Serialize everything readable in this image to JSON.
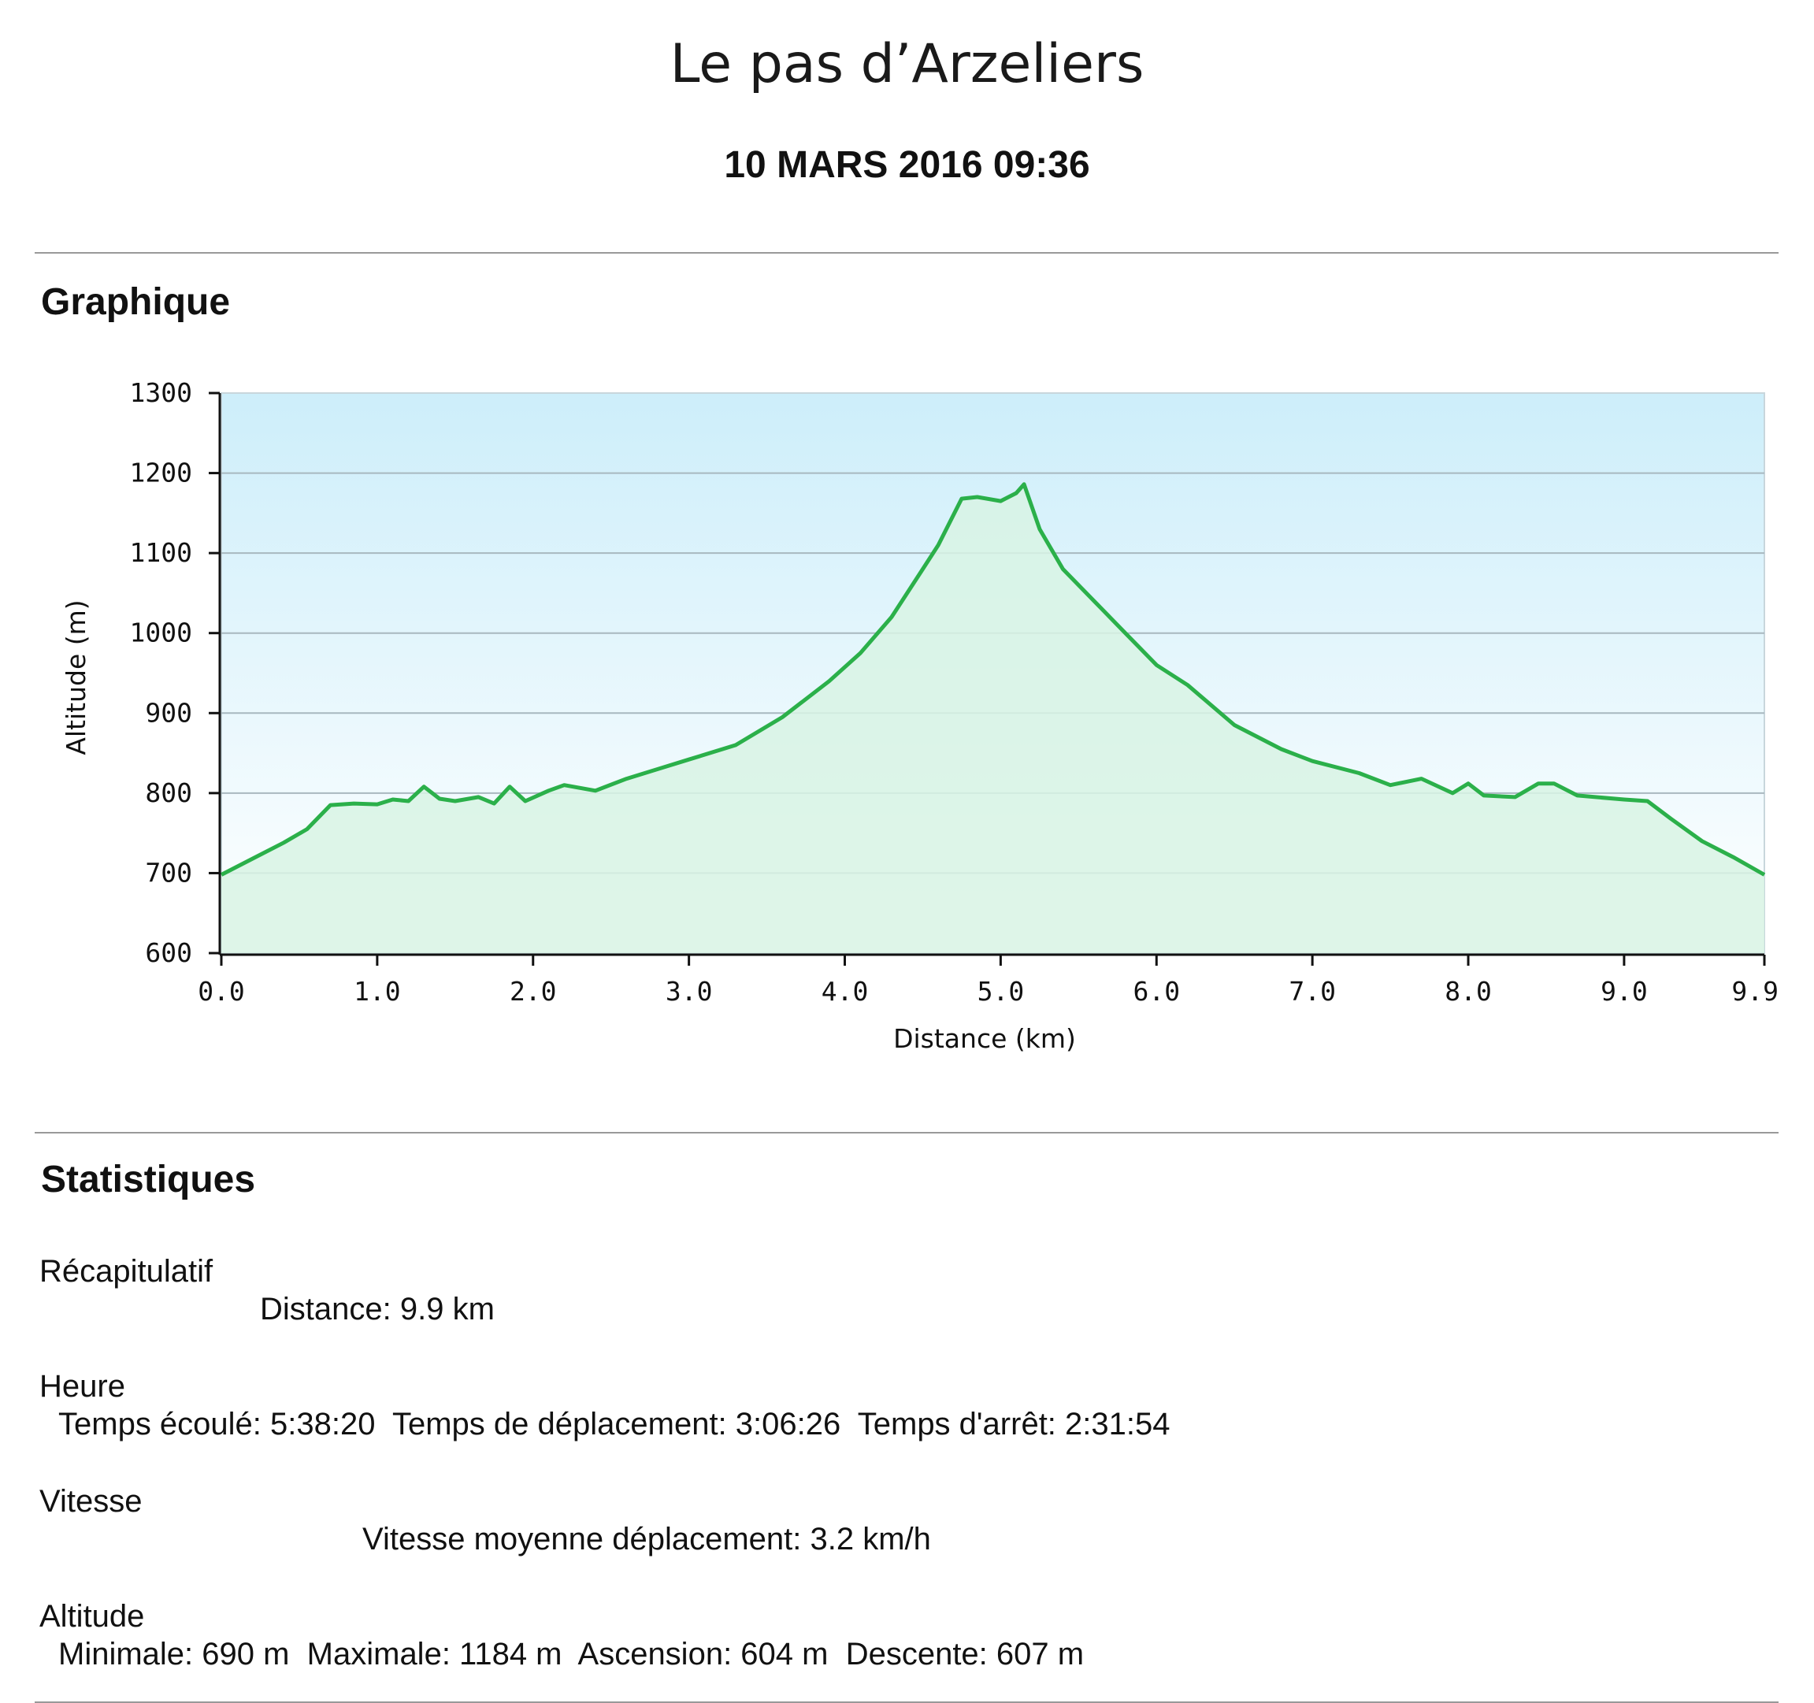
{
  "header": {
    "title": "Le pas d’Arzeliers",
    "date": "10 MARS 2016 09:36"
  },
  "sections": {
    "graph_heading": "Graphique",
    "stats_heading": "Statistiques"
  },
  "colors": {
    "line": "#2bb04a",
    "fill": "#d8f3e4",
    "bg_top": "#cdeefa",
    "bg_bottom": "#ffffff",
    "grid": "#a8b8bf"
  },
  "chart_data": {
    "type": "area",
    "xlabel": "Distance   (km)",
    "ylabel": "Altitude (m)",
    "xlim": [
      0,
      9.9
    ],
    "ylim": [
      600,
      1300
    ],
    "x_ticks": [
      0.0,
      1.0,
      2.0,
      3.0,
      4.0,
      5.0,
      6.0,
      7.0,
      8.0,
      9.0,
      9.9
    ],
    "x_tick_labels": [
      "0.0",
      "1.0",
      "2.0",
      "3.0",
      "4.0",
      "5.0",
      "6.0",
      "7.0",
      "8.0",
      "9.0",
      "9.9"
    ],
    "y_ticks": [
      600,
      700,
      800,
      900,
      1000,
      1100,
      1200,
      1300
    ],
    "y_tick_labels": [
      "600",
      "700",
      "800",
      "900",
      "1000",
      "1100",
      "1200",
      "1300"
    ],
    "grid": true,
    "x": [
      0.0,
      0.2,
      0.4,
      0.55,
      0.7,
      0.85,
      1.0,
      1.1,
      1.2,
      1.3,
      1.4,
      1.5,
      1.65,
      1.75,
      1.85,
      1.95,
      2.1,
      2.2,
      2.4,
      2.6,
      2.8,
      3.0,
      3.3,
      3.6,
      3.9,
      4.1,
      4.3,
      4.5,
      4.6,
      4.75,
      4.85,
      5.0,
      5.1,
      5.15,
      5.25,
      5.4,
      5.6,
      5.8,
      6.0,
      6.2,
      6.5,
      6.8,
      7.0,
      7.3,
      7.5,
      7.7,
      7.9,
      8.0,
      8.1,
      8.3,
      8.45,
      8.55,
      8.7,
      9.0,
      9.15,
      9.3,
      9.5,
      9.7,
      9.9
    ],
    "y": [
      698,
      718,
      738,
      755,
      785,
      787,
      786,
      792,
      790,
      808,
      793,
      790,
      795,
      787,
      808,
      790,
      803,
      810,
      803,
      818,
      830,
      842,
      860,
      895,
      940,
      975,
      1020,
      1080,
      1110,
      1168,
      1170,
      1165,
      1175,
      1186,
      1130,
      1080,
      1040,
      1000,
      960,
      935,
      885,
      855,
      840,
      825,
      810,
      818,
      800,
      812,
      797,
      795,
      812,
      812,
      797,
      792,
      790,
      768,
      740,
      720,
      698
    ]
  },
  "stats": {
    "recap_heading": "Récapitulatif",
    "recap_line": "Distance: 9.9 km",
    "heure_heading": "Heure",
    "heure_line": "Temps écoulé: 5:38:20  Temps de déplacement: 3:06:26  Temps d'arrêt: 2:31:54",
    "vitesse_heading": "Vitesse",
    "vitesse_line": "Vitesse moyenne déplacement: 3.2 km/h",
    "altitude_heading": "Altitude",
    "altitude_line": "Minimale: 690 m  Maximale: 1184 m  Ascension: 604 m  Descente: 607 m"
  }
}
